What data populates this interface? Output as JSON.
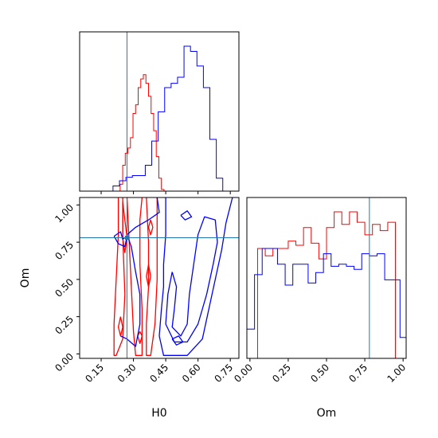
{
  "chart_data": [
    {
      "type": "histogram",
      "panel": "top-left",
      "parameter": "H0",
      "xlim": [
        0.05,
        0.79
      ],
      "truth": 0.27,
      "series": [
        {
          "color": "#ff0000",
          "bins": [
            0.225,
            0.238,
            0.25,
            0.262,
            0.274,
            0.286,
            0.298,
            0.31,
            0.322,
            0.334,
            0.346,
            0.358,
            0.37,
            0.382,
            0.394,
            0.406,
            0.418,
            0.43,
            0.442
          ],
          "counts": [
            0,
            8,
            30,
            44,
            50,
            62,
            90,
            100,
            120,
            130,
            135,
            125,
            110,
            90,
            70,
            40,
            15,
            2,
            0
          ]
        },
        {
          "color": "#0000ff",
          "bins": [
            0.175,
            0.205,
            0.235,
            0.265,
            0.295,
            0.325,
            0.355,
            0.385,
            0.415,
            0.445,
            0.475,
            0.505,
            0.535,
            0.565,
            0.595,
            0.625,
            0.655,
            0.685,
            0.715,
            0.745
          ],
          "counts": [
            0,
            6,
            12,
            16,
            18,
            18,
            30,
            58,
            92,
            120,
            125,
            132,
            168,
            162,
            145,
            120,
            60,
            15,
            0,
            0
          ]
        }
      ]
    },
    {
      "type": "contour",
      "panel": "bottom-left",
      "xlabel": "H0",
      "ylabel": "Om",
      "xlim": [
        0.05,
        0.79
      ],
      "ylim": [
        -0.03,
        1.05
      ],
      "xticks": [
        "0.15",
        "0.30",
        "0.45",
        "0.60",
        "0.75"
      ],
      "yticks": [
        "0.00",
        "0.25",
        "0.50",
        "0.75",
        "1.00"
      ],
      "truth": {
        "x": 0.27,
        "y": 0.78
      },
      "series": [
        {
          "color": "#ff0000",
          "contours": [
            [
              [
                0.23,
                1.05
              ],
              [
                0.23,
                0.8
              ],
              [
                0.22,
                0.5
              ],
              [
                0.21,
                0.2
              ],
              [
                0.21,
                -0.01
              ],
              [
                0.22,
                -0.01
              ],
              [
                0.25,
                0.1
              ],
              [
                0.26,
                0.4
              ],
              [
                0.25,
                0.8
              ],
              [
                0.25,
                1.05
              ]
            ],
            [
              [
                0.27,
                1.05
              ],
              [
                0.28,
                0.75
              ],
              [
                0.29,
                0.45
              ],
              [
                0.3,
                0.15
              ],
              [
                0.31,
                -0.01
              ],
              [
                0.34,
                -0.01
              ],
              [
                0.34,
                0.3
              ],
              [
                0.33,
                0.6
              ],
              [
                0.33,
                0.9
              ],
              [
                0.34,
                1.05
              ]
            ],
            [
              [
                0.36,
                1.05
              ],
              [
                0.37,
                0.75
              ],
              [
                0.37,
                0.45
              ],
              [
                0.36,
                0.2
              ],
              [
                0.36,
                -0.01
              ],
              [
                0.38,
                -0.01
              ],
              [
                0.4,
                0.2
              ],
              [
                0.41,
                0.5
              ],
              [
                0.41,
                0.8
              ],
              [
                0.41,
                1.05
              ]
            ],
            [
              [
                0.25,
                1.02
              ],
              [
                0.26,
                0.9
              ],
              [
                0.27,
                0.78
              ],
              [
                0.26,
                0.68
              ],
              [
                0.25,
                0.78
              ],
              [
                0.25,
                0.92
              ],
              [
                0.25,
                1.02
              ]
            ],
            [
              [
                0.24,
                0.25
              ],
              [
                0.25,
                0.18
              ],
              [
                0.24,
                0.12
              ],
              [
                0.23,
                0.18
              ],
              [
                0.24,
                0.25
              ]
            ],
            [
              [
                0.37,
                0.6
              ],
              [
                0.38,
                0.52
              ],
              [
                0.37,
                0.45
              ],
              [
                0.36,
                0.52
              ],
              [
                0.37,
                0.6
              ]
            ],
            [
              [
                0.38,
                0.9
              ],
              [
                0.39,
                0.85
              ],
              [
                0.38,
                0.8
              ],
              [
                0.37,
                0.85
              ],
              [
                0.38,
                0.9
              ]
            ],
            [
              [
                0.33,
                0.15
              ],
              [
                0.34,
                0.12
              ],
              [
                0.33,
                0.07
              ],
              [
                0.32,
                0.12
              ],
              [
                0.33,
                0.15
              ]
            ]
          ]
        },
        {
          "color": "#0000ff",
          "contours": [
            [
              [
                0.24,
                0.12
              ],
              [
                0.27,
                0.1
              ],
              [
                0.31,
                0.05
              ],
              [
                0.33,
                0.2
              ],
              [
                0.33,
                0.4
              ],
              [
                0.31,
                0.55
              ],
              [
                0.29,
                0.72
              ],
              [
                0.27,
                0.8
              ],
              [
                0.31,
                0.85
              ],
              [
                0.37,
                0.9
              ],
              [
                0.42,
                0.95
              ],
              [
                0.41,
                1.05
              ]
            ],
            [
              [
                0.21,
                0.79
              ],
              [
                0.24,
                0.82
              ],
              [
                0.25,
                0.77
              ],
              [
                0.27,
                0.79
              ],
              [
                0.26,
                0.72
              ],
              [
                0.23,
                0.74
              ],
              [
                0.21,
                0.79
              ]
            ],
            [
              [
                0.45,
                1.05
              ],
              [
                0.45,
                0.8
              ],
              [
                0.44,
                0.6
              ],
              [
                0.44,
                0.45
              ],
              [
                0.43,
                0.3
              ],
              [
                0.42,
                0.12
              ],
              [
                0.44,
                -0.01
              ],
              [
                0.55,
                -0.01
              ],
              [
                0.62,
                0.1
              ],
              [
                0.65,
                0.3
              ],
              [
                0.68,
                0.5
              ],
              [
                0.71,
                0.7
              ],
              [
                0.73,
                0.88
              ],
              [
                0.76,
                1.05
              ]
            ],
            [
              [
                0.48,
                0.55
              ],
              [
                0.5,
                0.45
              ],
              [
                0.49,
                0.3
              ],
              [
                0.48,
                0.18
              ],
              [
                0.52,
                0.12
              ],
              [
                0.55,
                0.2
              ],
              [
                0.56,
                0.4
              ],
              [
                0.58,
                0.6
              ],
              [
                0.6,
                0.8
              ],
              [
                0.63,
                0.92
              ],
              [
                0.68,
                0.9
              ],
              [
                0.69,
                0.75
              ],
              [
                0.67,
                0.6
              ],
              [
                0.64,
                0.4
              ],
              [
                0.6,
                0.2
              ],
              [
                0.55,
                0.08
              ],
              [
                0.49,
                0.08
              ],
              [
                0.45,
                0.2
              ],
              [
                0.46,
                0.4
              ],
              [
                0.48,
                0.55
              ]
            ],
            [
              [
                0.52,
                0.93
              ],
              [
                0.55,
                0.96
              ],
              [
                0.57,
                0.92
              ],
              [
                0.54,
                0.9
              ],
              [
                0.52,
                0.93
              ]
            ],
            [
              [
                0.48,
                0.1
              ],
              [
                0.51,
                0.12
              ],
              [
                0.53,
                0.08
              ],
              [
                0.5,
                0.06
              ],
              [
                0.48,
                0.1
              ]
            ]
          ]
        }
      ]
    },
    {
      "type": "histogram",
      "panel": "bottom-right",
      "parameter": "Om",
      "xlabel": "Om",
      "xlim": [
        -0.02,
        1.02
      ],
      "xticks": [
        "0.00",
        "0.25",
        "0.50",
        "0.75",
        "1.00"
      ],
      "truth": 0.78,
      "series": [
        {
          "color": "#ff0000",
          "bins": [
            0.0,
            0.05,
            0.1,
            0.15,
            0.2,
            0.25,
            0.3,
            0.35,
            0.4,
            0.45,
            0.5,
            0.55,
            0.6,
            0.65,
            0.7,
            0.75,
            0.8,
            0.85,
            0.9,
            0.95,
            1.0
          ],
          "counts": [
            0,
            105,
            98,
            105,
            105,
            112,
            108,
            125,
            110,
            95,
            125,
            140,
            128,
            140,
            130,
            118,
            128,
            122,
            130,
            0
          ]
        },
        {
          "color": "#0000ff",
          "bins": [
            -0.02,
            0.0,
            0.03,
            0.08,
            0.13,
            0.18,
            0.23,
            0.28,
            0.33,
            0.38,
            0.43,
            0.48,
            0.53,
            0.58,
            0.63,
            0.68,
            0.73,
            0.78,
            0.83,
            0.88,
            0.93,
            0.98,
            1.02
          ],
          "counts": [
            28,
            28,
            80,
            105,
            105,
            90,
            70,
            90,
            90,
            72,
            82,
            100,
            88,
            90,
            88,
            85,
            100,
            98,
            100,
            75,
            75,
            20
          ]
        }
      ]
    }
  ]
}
